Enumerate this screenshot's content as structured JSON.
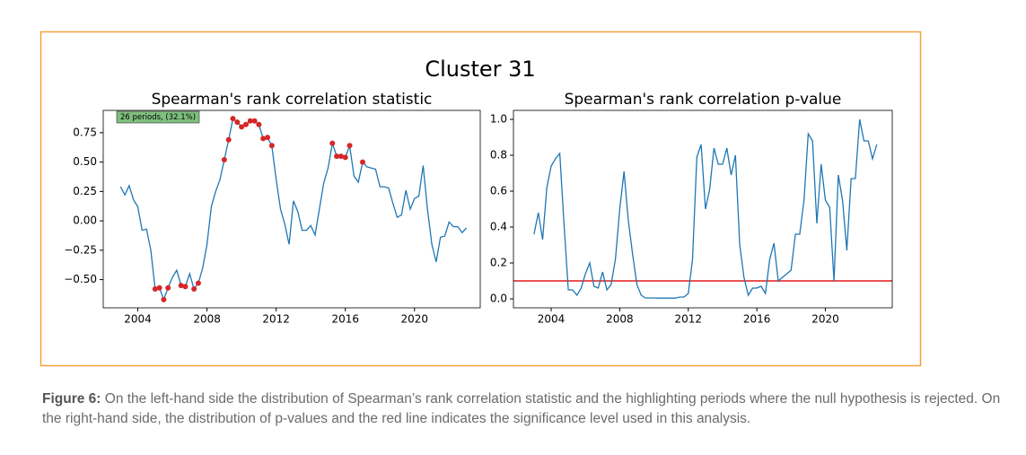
{
  "figure_title": "Cluster 31",
  "caption_label": "Figure 6:",
  "caption_text": "On the left-hand side the distribution of Spearman’s rank correlation statistic and the highlighting periods where the null hypothesis is rejected. On the right-hand side, the distribution of p-values and the red line indicates the significance level used in this analysis.",
  "chart_data": [
    {
      "type": "line",
      "title": "Spearman's rank correlation statistic",
      "annotation": "26 periods, (32.1%)",
      "annotation_color": "#7fbf7f",
      "x": [
        2003,
        2003.25,
        2003.5,
        2003.75,
        2004,
        2004.25,
        2004.5,
        2004.75,
        2005,
        2005.25,
        2005.5,
        2005.75,
        2006,
        2006.25,
        2006.5,
        2006.75,
        2007,
        2007.25,
        2007.5,
        2007.75,
        2008,
        2008.25,
        2008.5,
        2008.75,
        2009,
        2009.25,
        2009.5,
        2009.75,
        2010,
        2010.25,
        2010.5,
        2010.75,
        2011,
        2011.25,
        2011.5,
        2011.75,
        2012,
        2012.25,
        2012.5,
        2012.75,
        2013,
        2013.25,
        2013.5,
        2013.75,
        2014,
        2014.25,
        2014.5,
        2014.75,
        2015,
        2015.25,
        2015.5,
        2015.75,
        2016,
        2016.25,
        2016.5,
        2016.75,
        2017,
        2017.25,
        2017.5,
        2017.75,
        2018,
        2018.25,
        2018.5,
        2018.75,
        2019,
        2019.25,
        2019.5,
        2019.75,
        2020,
        2020.25,
        2020.5,
        2020.75,
        2021,
        2021.25,
        2021.5,
        2021.75,
        2022,
        2022.25,
        2022.5,
        2022.75,
        2023
      ],
      "series": [
        {
          "color": "#1f77b4",
          "values": [
            0.29,
            0.22,
            0.3,
            0.18,
            0.12,
            -0.08,
            -0.07,
            -0.25,
            -0.58,
            -0.57,
            -0.67,
            -0.57,
            -0.48,
            -0.42,
            -0.55,
            -0.56,
            -0.45,
            -0.58,
            -0.53,
            -0.4,
            -0.2,
            0.12,
            0.25,
            0.35,
            0.52,
            0.69,
            0.87,
            0.84,
            0.8,
            0.82,
            0.85,
            0.85,
            0.82,
            0.7,
            0.71,
            0.64,
            0.35,
            0.1,
            -0.03,
            -0.2,
            0.17,
            0.08,
            -0.08,
            -0.08,
            -0.04,
            -0.12,
            0.1,
            0.32,
            0.45,
            0.66,
            0.55,
            0.55,
            0.54,
            0.64,
            0.38,
            0.33,
            0.5,
            0.46,
            0.45,
            0.44,
            0.29,
            0.29,
            0.28,
            0.15,
            0.03,
            0.05,
            0.26,
            0.1,
            0.19,
            0.21,
            0.47,
            0.1,
            -0.2,
            -0.35,
            -0.14,
            -0.13,
            -0.01,
            -0.05,
            -0.05,
            -0.1,
            -0.06
          ]
        },
        {
          "color": "#d62728",
          "marker": "dot",
          "values": [
            null,
            null,
            null,
            null,
            null,
            null,
            null,
            null,
            -0.58,
            -0.57,
            -0.67,
            -0.57,
            null,
            null,
            -0.55,
            -0.56,
            null,
            -0.58,
            -0.53,
            null,
            null,
            null,
            null,
            null,
            0.52,
            0.69,
            0.87,
            0.84,
            0.8,
            0.82,
            0.85,
            0.85,
            0.82,
            0.7,
            0.71,
            0.64,
            null,
            null,
            null,
            null,
            null,
            null,
            null,
            null,
            null,
            null,
            null,
            null,
            null,
            0.66,
            0.55,
            0.55,
            0.54,
            0.64,
            null,
            null,
            0.5,
            null,
            null,
            null,
            null,
            null,
            null,
            null,
            null,
            null,
            null,
            null,
            null,
            null,
            null,
            null,
            null,
            null,
            null,
            null,
            null,
            null,
            null,
            null,
            null
          ]
        }
      ],
      "xlim": [
        2002,
        2023.8
      ],
      "ylim": [
        -0.74,
        0.94
      ],
      "xticks": [
        2004,
        2008,
        2012,
        2016,
        2020
      ],
      "yticks": [
        {
          "value": -0.5,
          "label": "−0.50"
        },
        {
          "value": -0.25,
          "label": "−0.25"
        },
        {
          "value": 0,
          "label": "0.00"
        },
        {
          "value": 0.25,
          "label": "0.25"
        },
        {
          "value": 0.5,
          "label": "0.50"
        },
        {
          "value": 0.75,
          "label": "0.75"
        }
      ]
    },
    {
      "type": "line",
      "title": "Spearman's rank correlation p-value",
      "hline": 0.1,
      "hline_color": "#e41a1c",
      "x": [
        2003,
        2003.25,
        2003.5,
        2003.75,
        2004,
        2004.25,
        2004.5,
        2004.75,
        2005,
        2005.25,
        2005.5,
        2005.75,
        2006,
        2006.25,
        2006.5,
        2006.75,
        2007,
        2007.25,
        2007.5,
        2007.75,
        2008,
        2008.25,
        2008.5,
        2008.75,
        2009,
        2009.25,
        2009.5,
        2009.75,
        2010,
        2010.25,
        2010.5,
        2010.75,
        2011,
        2011.25,
        2011.5,
        2011.75,
        2012,
        2012.25,
        2012.5,
        2012.75,
        2013,
        2013.25,
        2013.5,
        2013.75,
        2014,
        2014.25,
        2014.5,
        2014.75,
        2015,
        2015.25,
        2015.5,
        2015.75,
        2016,
        2016.25,
        2016.5,
        2016.75,
        2017,
        2017.25,
        2017.5,
        2017.75,
        2018,
        2018.25,
        2018.5,
        2018.75,
        2019,
        2019.25,
        2019.5,
        2019.75,
        2020,
        2020.25,
        2020.5,
        2020.75,
        2021,
        2021.25,
        2021.5,
        2021.75,
        2022,
        2022.25,
        2022.5,
        2022.75,
        2023
      ],
      "series": [
        {
          "color": "#1f77b4",
          "values": [
            0.36,
            0.48,
            0.33,
            0.62,
            0.74,
            0.78,
            0.81,
            0.42,
            0.05,
            0.05,
            0.02,
            0.06,
            0.14,
            0.2,
            0.07,
            0.06,
            0.15,
            0.05,
            0.08,
            0.22,
            0.5,
            0.71,
            0.44,
            0.25,
            0.08,
            0.02,
            0.005,
            0.005,
            0.005,
            0.004,
            0.004,
            0.004,
            0.004,
            0.004,
            0.01,
            0.01,
            0.03,
            0.22,
            0.79,
            0.86,
            0.5,
            0.61,
            0.84,
            0.75,
            0.75,
            0.84,
            0.69,
            0.8,
            0.3,
            0.12,
            0.02,
            0.06,
            0.06,
            0.07,
            0.03,
            0.22,
            0.31,
            0.1,
            0.12,
            0.14,
            0.16,
            0.36,
            0.36,
            0.55,
            0.92,
            0.88,
            0.42,
            0.75,
            0.55,
            0.51,
            0.1,
            0.69,
            0.55,
            0.27,
            0.67,
            0.67,
            1.0,
            0.88,
            0.88,
            0.78,
            0.86
          ]
        }
      ],
      "xlim": [
        2001.8,
        2023.9
      ],
      "ylim": [
        -0.05,
        1.05
      ],
      "xticks": [
        2004,
        2008,
        2012,
        2016,
        2020
      ],
      "yticks": [
        {
          "value": 0,
          "label": "0.0"
        },
        {
          "value": 0.2,
          "label": "0.2"
        },
        {
          "value": 0.4,
          "label": "0.4"
        },
        {
          "value": 0.6,
          "label": "0.6"
        },
        {
          "value": 0.8,
          "label": "0.8"
        },
        {
          "value": 1.0,
          "label": "1.0"
        }
      ]
    }
  ]
}
